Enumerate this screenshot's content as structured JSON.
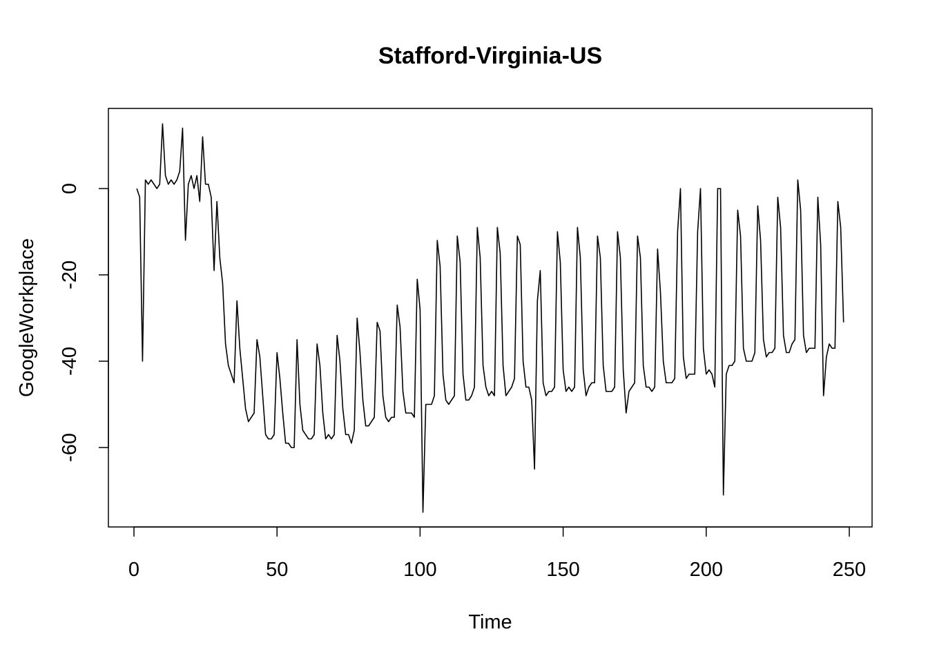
{
  "chart_data": {
    "type": "line",
    "title": "Stafford-Virginia-US",
    "xlabel": "Time",
    "ylabel": "GoogleWorkplace",
    "xlim": [
      1,
      250
    ],
    "ylim": [
      -75,
      15
    ],
    "xticks": [
      0,
      50,
      100,
      150,
      200,
      250
    ],
    "yticks": [
      0,
      -20,
      -40,
      -60
    ],
    "x_start": 1,
    "values": [
      0,
      -2,
      -40,
      2,
      1,
      2,
      1,
      0,
      1,
      15,
      3,
      1,
      2,
      1,
      2,
      4,
      14,
      -12,
      1,
      3,
      0,
      3,
      -3,
      12,
      1,
      1,
      -2,
      -19,
      -3,
      -16,
      -22,
      -36,
      -41,
      -43,
      -45,
      -26,
      -37,
      -44,
      -51,
      -54,
      -53,
      -52,
      -35,
      -39,
      -48,
      -57,
      -58,
      -58,
      -57,
      -38,
      -44,
      -52,
      -59,
      -59,
      -60,
      -60,
      -35,
      -50,
      -56,
      -57,
      -58,
      -58,
      -57,
      -36,
      -41,
      -52,
      -58,
      -57,
      -58,
      -57,
      -34,
      -40,
      -51,
      -57,
      -57,
      -59,
      -56,
      -30,
      -38,
      -49,
      -55,
      -55,
      -54,
      -53,
      -31,
      -33,
      -48,
      -53,
      -54,
      -53,
      -53,
      -27,
      -32,
      -47,
      -52,
      -52,
      -52,
      -53,
      -21,
      -28,
      -75,
      -50,
      -50,
      -50,
      -48,
      -12,
      -18,
      -43,
      -49,
      -50,
      -49,
      -48,
      -11,
      -17,
      -43,
      -49,
      -49,
      -48,
      -46,
      -9,
      -16,
      -41,
      -46,
      -48,
      -47,
      -48,
      -9,
      -15,
      -41,
      -48,
      -47,
      -46,
      -44,
      -11,
      -13,
      -40,
      -46,
      -46,
      -49,
      -65,
      -26,
      -19,
      -45,
      -48,
      -47,
      -47,
      -46,
      -10,
      -17,
      -42,
      -47,
      -46,
      -47,
      -46,
      -9,
      -16,
      -42,
      -48,
      -46,
      -45,
      -45,
      -11,
      -16,
      -41,
      -47,
      -47,
      -47,
      -46,
      -10,
      -16,
      -42,
      -52,
      -47,
      -46,
      -45,
      -11,
      -16,
      -41,
      -46,
      -46,
      -47,
      -46,
      -14,
      -24,
      -40,
      -45,
      -45,
      -45,
      -44,
      -10,
      0,
      -39,
      -44,
      -43,
      -43,
      -43,
      -10,
      0,
      -37,
      -43,
      -42,
      -43,
      -46,
      0,
      0,
      -71,
      -43,
      -41,
      -41,
      -40,
      -5,
      -11,
      -37,
      -40,
      -40,
      -40,
      -38,
      -4,
      -12,
      -35,
      -39,
      -38,
      -38,
      -37,
      -2,
      -9,
      -34,
      -38,
      -38,
      -36,
      -35,
      2,
      -5,
      -34,
      -38,
      -37,
      -37,
      -37,
      -2,
      -13,
      -48,
      -39,
      -36,
      -37,
      -37,
      -3,
      -9,
      -31
    ]
  }
}
